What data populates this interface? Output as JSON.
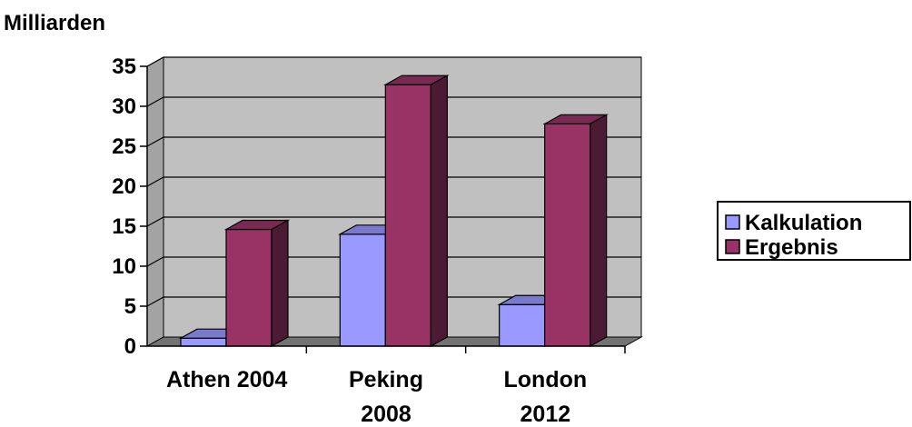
{
  "chart_data": {
    "type": "bar",
    "title": "",
    "ylabel": "Milliarden",
    "xlabel": "",
    "categories": [
      [
        "Athen 2004"
      ],
      [
        "Peking",
        "2008"
      ],
      [
        "London",
        "2012"
      ]
    ],
    "series": [
      {
        "name": "Kalkulation",
        "values": [
          1,
          14,
          5.2
        ],
        "color": "#9999ff"
      },
      {
        "name": "Ergebnis",
        "values": [
          14.6,
          32.7,
          27.8
        ],
        "color": "#993366"
      }
    ],
    "ylim": [
      0,
      35
    ],
    "yticks": [
      0,
      5,
      10,
      15,
      20,
      25,
      30,
      35
    ],
    "grid": true,
    "style": "3d-clustered-column",
    "wall_color": "#c0c0c0",
    "legend_position": "right"
  }
}
